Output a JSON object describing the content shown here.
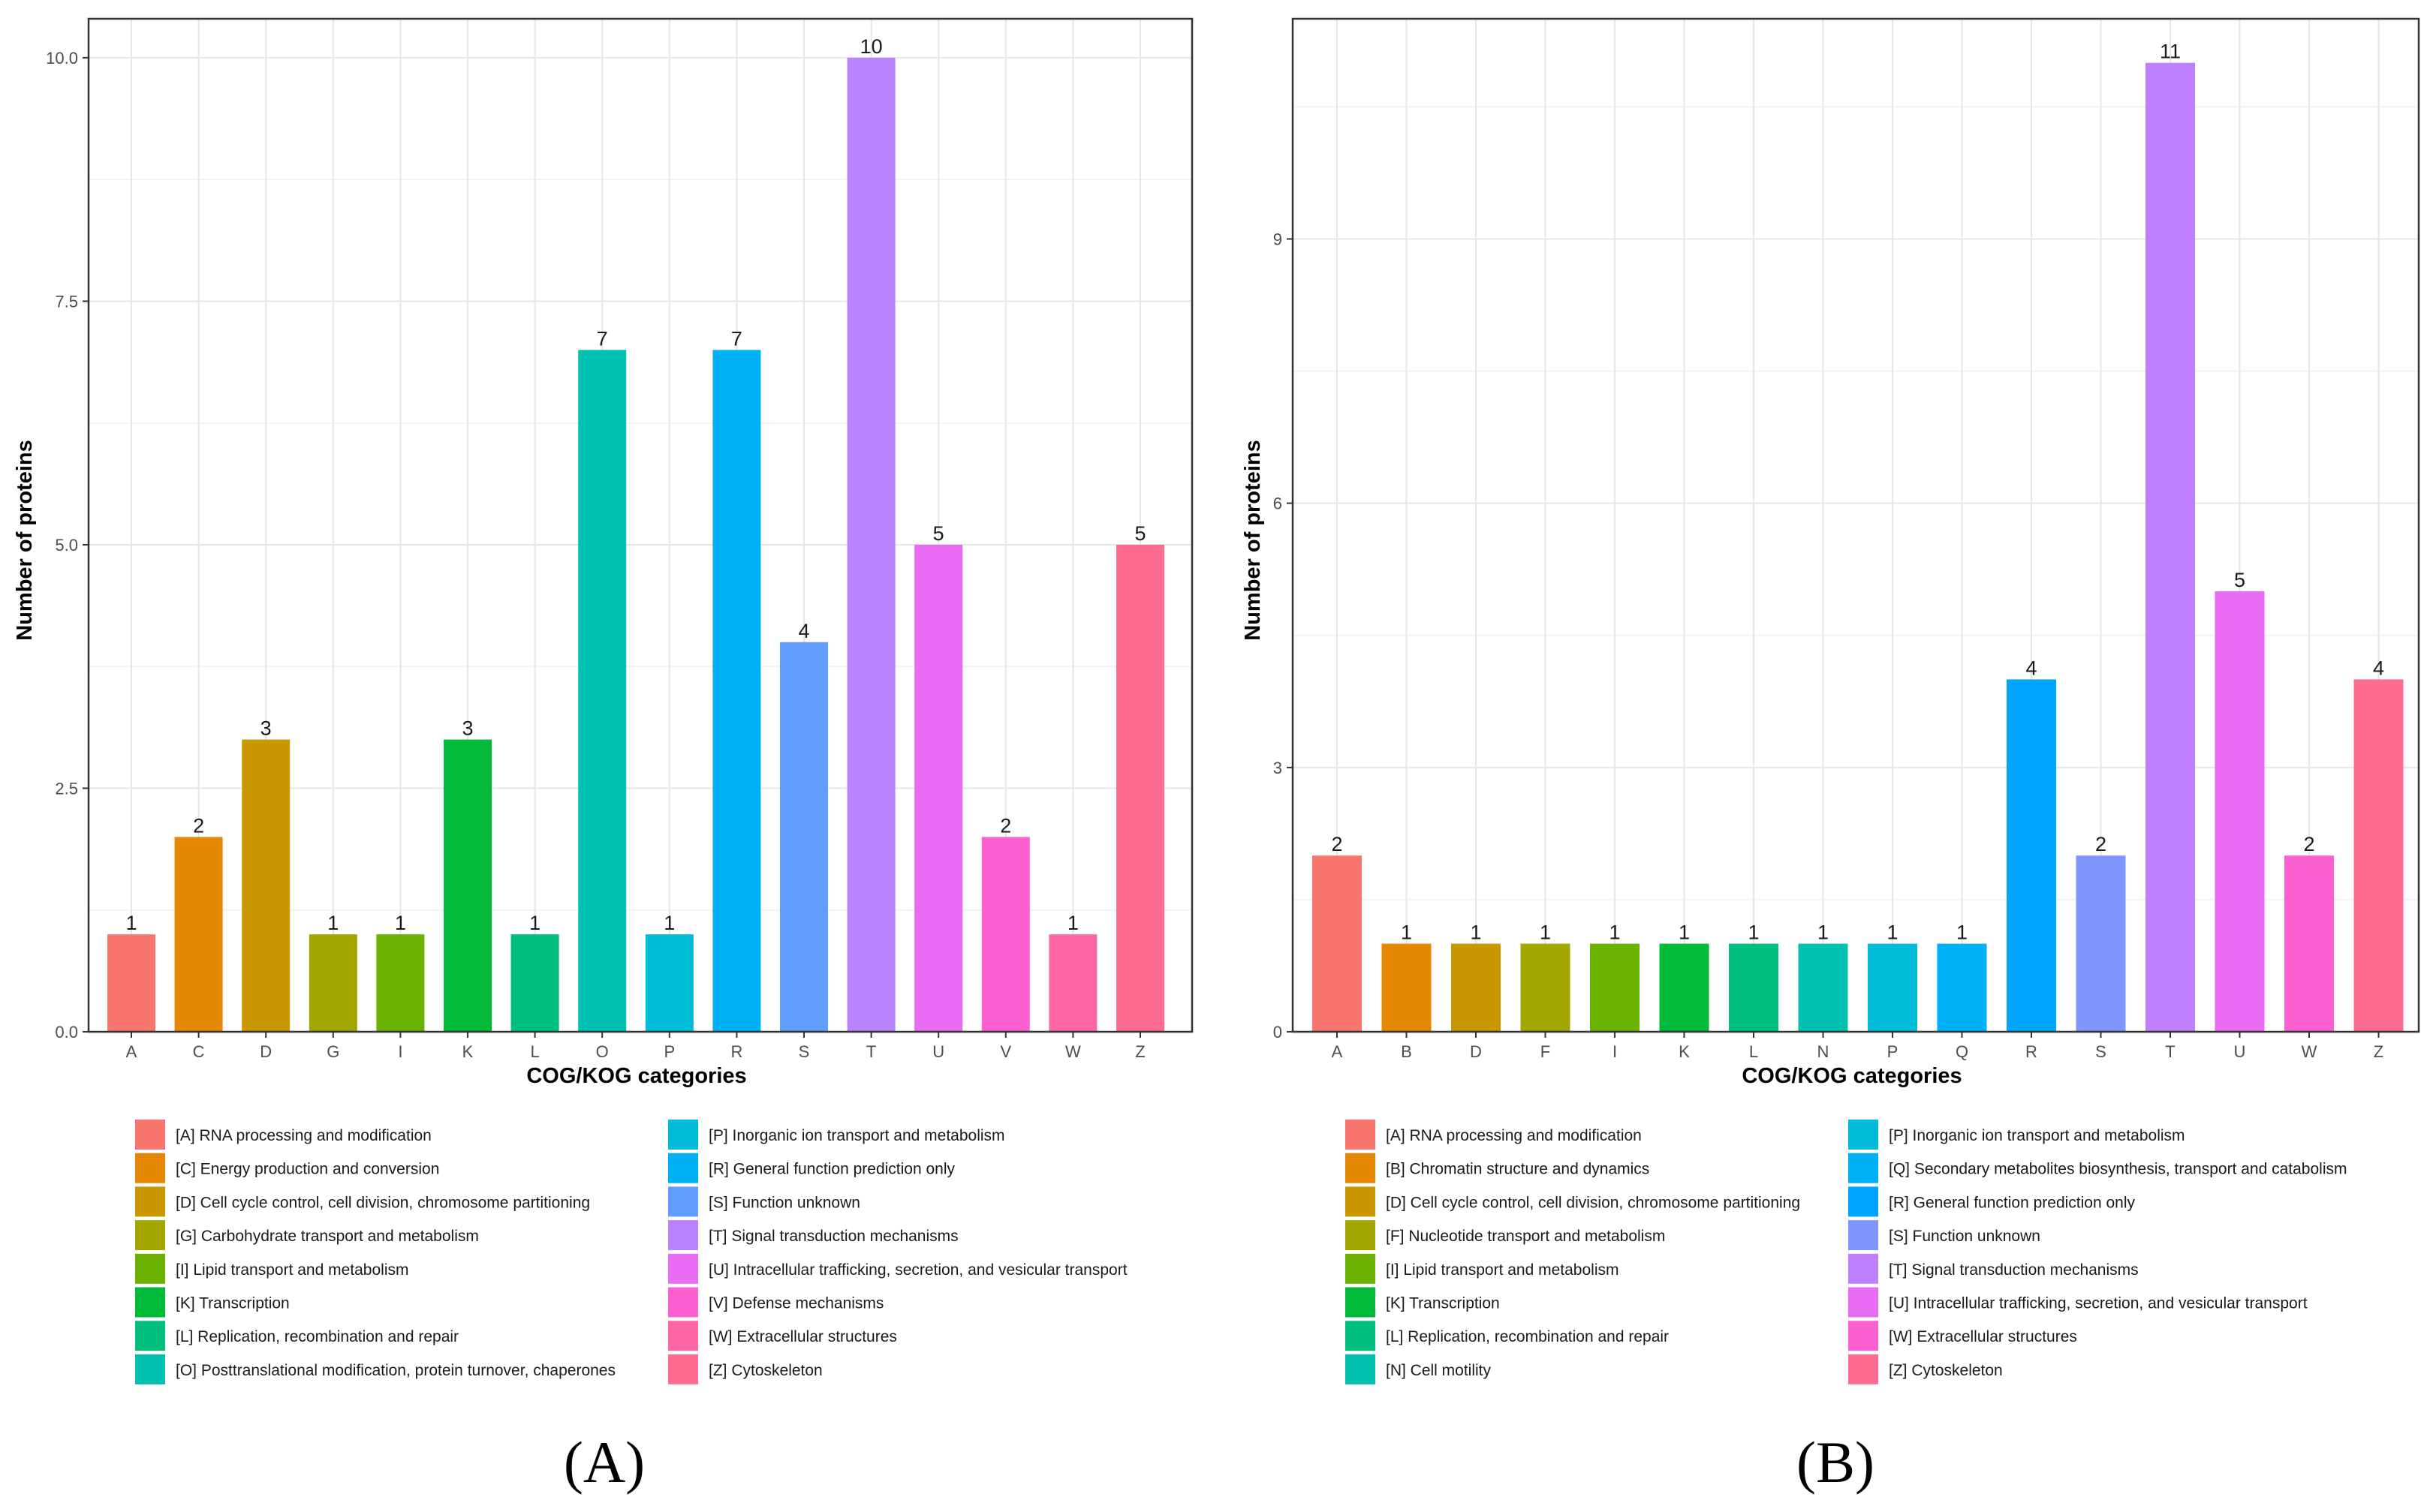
{
  "chart_data": [
    {
      "type": "bar",
      "panel_label": "(A)",
      "xlabel": "COG/KOG categories",
      "ylabel": "Number of proteins",
      "ylim": [
        0,
        10.4
      ],
      "yticks": [
        "0.0",
        "2.5",
        "5.0",
        "7.5",
        "10.0"
      ],
      "ytick_values": [
        0,
        2.5,
        5,
        7.5,
        10
      ],
      "categories": [
        "A",
        "C",
        "D",
        "G",
        "I",
        "K",
        "L",
        "O",
        "P",
        "R",
        "S",
        "T",
        "U",
        "V",
        "W",
        "Z"
      ],
      "values": [
        1,
        2,
        3,
        1,
        1,
        3,
        1,
        7,
        1,
        7,
        4,
        10,
        5,
        2,
        1,
        5
      ],
      "colors": [
        "#F8766D",
        "#E58700",
        "#C99800",
        "#A3A500",
        "#6BB100",
        "#00BA38",
        "#00BF7D",
        "#00C0AF",
        "#00BCD8",
        "#00B0F6",
        "#619CFF",
        "#B983FF",
        "#E76BF3",
        "#FD61D1",
        "#FF67A4",
        "#FF6C91"
      ],
      "legend": [
        {
          "label": "[A] RNA processing and modification",
          "color": "#F8766D"
        },
        {
          "label": "[C] Energy production and conversion",
          "color": "#E58700"
        },
        {
          "label": "[D] Cell cycle control, cell division, chromosome partitioning",
          "color": "#C99800"
        },
        {
          "label": "[G] Carbohydrate transport and metabolism",
          "color": "#A3A500"
        },
        {
          "label": "[I] Lipid transport and metabolism",
          "color": "#6BB100"
        },
        {
          "label": "[K] Transcription",
          "color": "#00BA38"
        },
        {
          "label": "[L] Replication, recombination and repair",
          "color": "#00BF7D"
        },
        {
          "label": "[O] Posttranslational modification, protein turnover, chaperones",
          "color": "#00C0AF"
        },
        {
          "label": "[P] Inorganic ion transport and metabolism",
          "color": "#00BCD8"
        },
        {
          "label": "[R] General function prediction only",
          "color": "#00B0F6"
        },
        {
          "label": "[S] Function unknown",
          "color": "#619CFF"
        },
        {
          "label": "[T] Signal transduction mechanisms",
          "color": "#B983FF"
        },
        {
          "label": "[U] Intracellular trafficking, secretion, and vesicular transport",
          "color": "#E76BF3"
        },
        {
          "label": "[V] Defense mechanisms",
          "color": "#FD61D1"
        },
        {
          "label": "[W] Extracellular structures",
          "color": "#FF67A4"
        },
        {
          "label": "[Z] Cytoskeleton",
          "color": "#FF6C91"
        }
      ]
    },
    {
      "type": "bar",
      "panel_label": "(B)",
      "xlabel": "COG/KOG categories",
      "ylabel": "Number of proteins",
      "ylim": [
        0,
        11.5
      ],
      "yticks": [
        "0",
        "3",
        "6",
        "9"
      ],
      "ytick_values": [
        0,
        3,
        6,
        9
      ],
      "categories": [
        "A",
        "B",
        "D",
        "F",
        "I",
        "K",
        "L",
        "N",
        "P",
        "Q",
        "R",
        "S",
        "T",
        "U",
        "W",
        "Z"
      ],
      "values": [
        2,
        1,
        1,
        1,
        1,
        1,
        1,
        1,
        1,
        1,
        4,
        2,
        11,
        5,
        2,
        4
      ],
      "colors": [
        "#F8766D",
        "#E58700",
        "#C99800",
        "#A3A500",
        "#6BB100",
        "#00BA38",
        "#00BF7D",
        "#00C0AF",
        "#00BCD8",
        "#00B0F6",
        "#00A5FF",
        "#7F96FF",
        "#BF80FF",
        "#E76BF3",
        "#FD61D1",
        "#FF6C91"
      ],
      "legend": [
        {
          "label": "[A] RNA processing and modification",
          "color": "#F8766D"
        },
        {
          "label": "[B] Chromatin structure and dynamics",
          "color": "#E58700"
        },
        {
          "label": "[D] Cell cycle control, cell division, chromosome partitioning",
          "color": "#C99800"
        },
        {
          "label": "[F] Nucleotide transport and metabolism",
          "color": "#A3A500"
        },
        {
          "label": "[I] Lipid transport and metabolism",
          "color": "#6BB100"
        },
        {
          "label": "[K] Transcription",
          "color": "#00BA38"
        },
        {
          "label": "[L] Replication, recombination and repair",
          "color": "#00BF7D"
        },
        {
          "label": "[N] Cell motility",
          "color": "#00C0AF"
        },
        {
          "label": "[P] Inorganic ion transport and metabolism",
          "color": "#00BCD8"
        },
        {
          "label": "[Q] Secondary metabolites biosynthesis, transport and catabolism",
          "color": "#00B0F6"
        },
        {
          "label": "[R] General function prediction only",
          "color": "#00A5FF"
        },
        {
          "label": "[S] Function unknown",
          "color": "#7F96FF"
        },
        {
          "label": "[T] Signal transduction mechanisms",
          "color": "#BF80FF"
        },
        {
          "label": "[U] Intracellular trafficking, secretion, and vesicular transport",
          "color": "#E76BF3"
        },
        {
          "label": "[W] Extracellular structures",
          "color": "#FD61D1"
        },
        {
          "label": "[Z] Cytoskeleton",
          "color": "#FF6C91"
        }
      ]
    }
  ]
}
